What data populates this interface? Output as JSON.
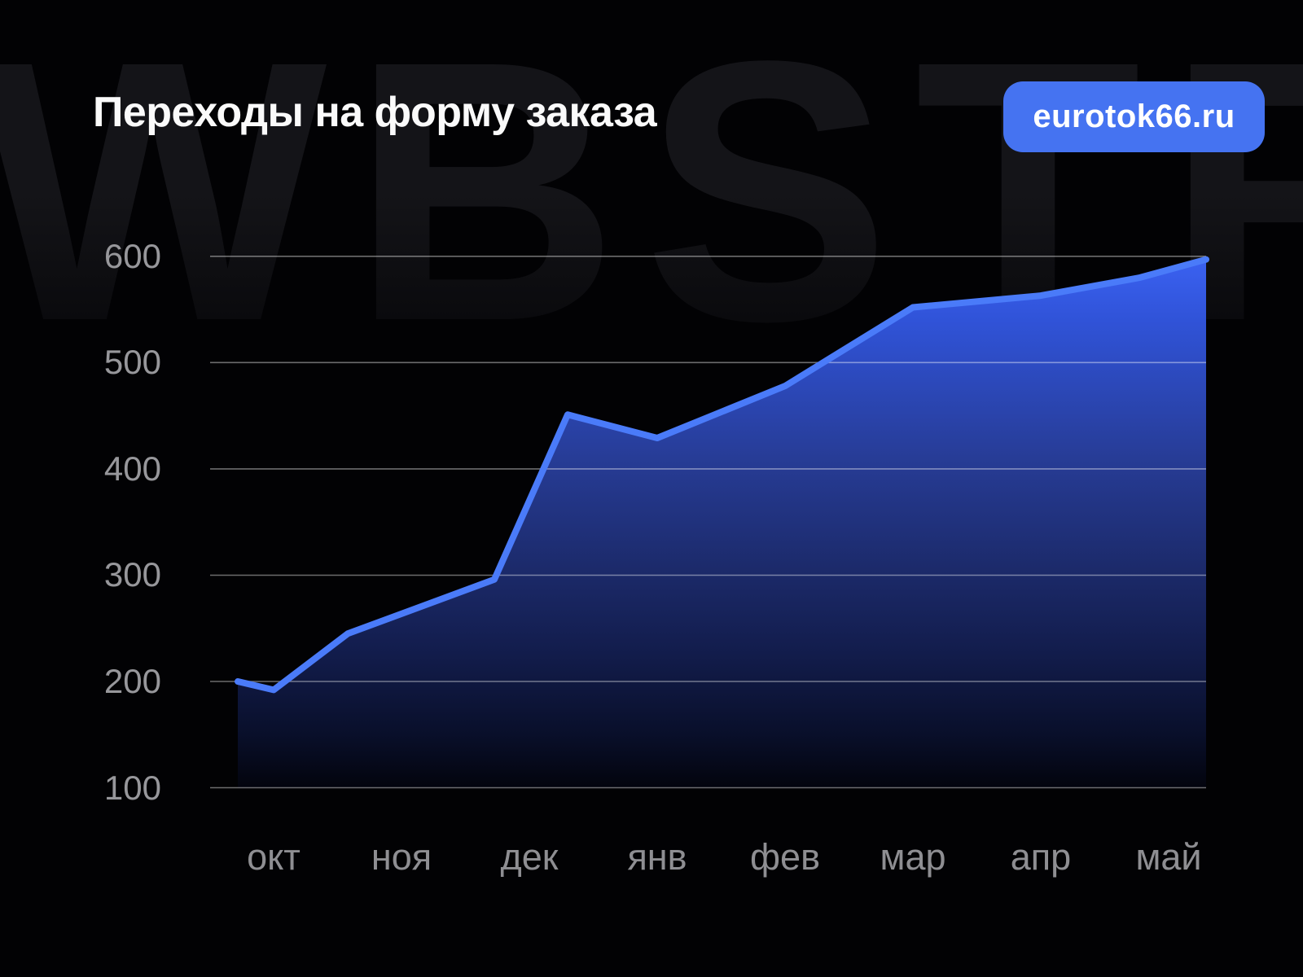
{
  "page": {
    "background": "#020204"
  },
  "watermark": {
    "text": "WBSTR"
  },
  "header": {
    "title": "Переходы на форму заказа",
    "badge": {
      "label": "eurotok66.ru",
      "color": "#4573F1"
    }
  },
  "chart_data": {
    "type": "area",
    "title": "Переходы на форму заказа",
    "categories": [
      "окт",
      "ноя",
      "дек",
      "янв",
      "фев",
      "мар",
      "апр",
      "май"
    ],
    "approx_values_at_months": [
      192,
      264,
      370,
      429,
      478,
      552,
      563,
      588
    ],
    "polyline_points": [
      [
        292,
        200
      ],
      [
        336,
        192
      ],
      [
        427,
        245
      ],
      [
        607,
        296
      ],
      [
        697,
        451
      ],
      [
        807,
        429
      ],
      [
        964,
        478
      ],
      [
        1121,
        552
      ],
      [
        1278,
        563
      ],
      [
        1400,
        580
      ],
      [
        1481,
        597
      ]
    ],
    "ylim": [
      100,
      600
    ],
    "yticks": [
      600,
      500,
      400,
      300,
      200,
      100
    ],
    "grid": true,
    "legend_position": "none",
    "line_color": "#4A7BF9",
    "grid_color": "rgba(255,255,255,0.42)",
    "tick_label_color": "#97979B",
    "month_label_color": "#8E8E92",
    "area_gradient": [
      [
        0.0,
        "#3B62F2"
      ],
      [
        0.12,
        "#3053D8"
      ],
      [
        0.38,
        "#273C96"
      ],
      [
        0.6,
        "#1B2968"
      ],
      [
        0.75,
        "#121C4B"
      ],
      [
        0.9,
        "#090F2A"
      ],
      [
        1.0,
        "#03040D"
      ]
    ]
  }
}
